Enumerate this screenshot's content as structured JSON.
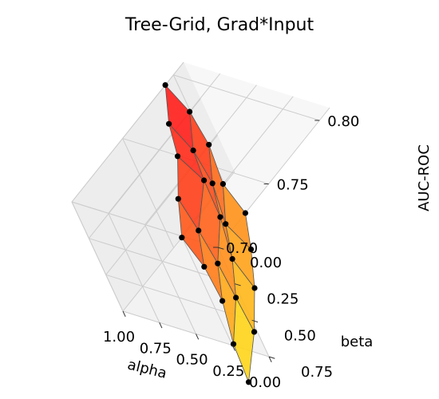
{
  "chart_data": {
    "type": "surface3d",
    "title": "Tree-Grid, Grad*Input",
    "xlabel": "alpha",
    "ylabel": "beta",
    "zlabel": "AUC-ROC",
    "x_ticks": [
      "0.00",
      "0.25",
      "0.50",
      "0.75",
      "1.00"
    ],
    "y_ticks": [
      "0.00",
      "0.25",
      "0.50",
      "0.75"
    ],
    "z_ticks": [
      "0.70",
      "0.75",
      "0.80"
    ],
    "xlim": [
      0,
      1
    ],
    "ylim": [
      0,
      0.75
    ],
    "zlim": [
      0.7,
      0.81
    ],
    "grid": true,
    "colormap": "autumn",
    "alpha_values": [
      0,
      0.25,
      0.5,
      0.75,
      1.0
    ],
    "beta_values": [
      0,
      0.1875,
      0.375,
      0.5625,
      0.75
    ],
    "auc_roc": [
      [
        0.727,
        0.741,
        0.763,
        0.78,
        0.792
      ],
      [
        0.72,
        0.731,
        0.754,
        0.771,
        0.783
      ],
      [
        0.711,
        0.725,
        0.749,
        0.769,
        0.779
      ],
      [
        0.698,
        0.716,
        0.734,
        0.751,
        0.767
      ],
      [
        0.68,
        0.701,
        0.726,
        0.744,
        0.758
      ]
    ]
  }
}
